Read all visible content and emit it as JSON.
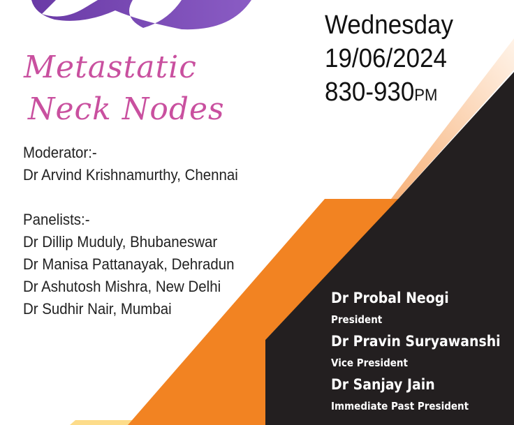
{
  "title": {
    "line1": "Metastatic",
    "line2": "Neck Nodes"
  },
  "schedule": {
    "day": "Wednesday",
    "date": "19/06/2024",
    "time": "830-930",
    "time_suffix": "PM"
  },
  "moderator": {
    "label": "Moderator:-",
    "name": "Dr Arvind Krishnamurthy, Chennai"
  },
  "panelists": {
    "label": "Panelists:-",
    "items": [
      "Dr Dillip Muduly, Bhubaneswar",
      "Dr Manisa Pattanayak, Dehradun",
      "Dr Ashutosh Mishra, New Delhi",
      "Dr Sudhir Nair, Mumbai"
    ]
  },
  "officers": [
    {
      "name": "Dr Probal Neogi",
      "role": "President"
    },
    {
      "name": "Dr Pravin Suryawanshi",
      "role": "Vice President"
    },
    {
      "name": "Dr Sanjay Jain",
      "role": "Immediate Past President"
    }
  ],
  "colors": {
    "title": "#c9509f",
    "orange": "#f28322",
    "black": "#231f20",
    "ribbon": "#7a4bb0",
    "peach": "#fbd3b0",
    "yellow": "#fddc8a"
  }
}
